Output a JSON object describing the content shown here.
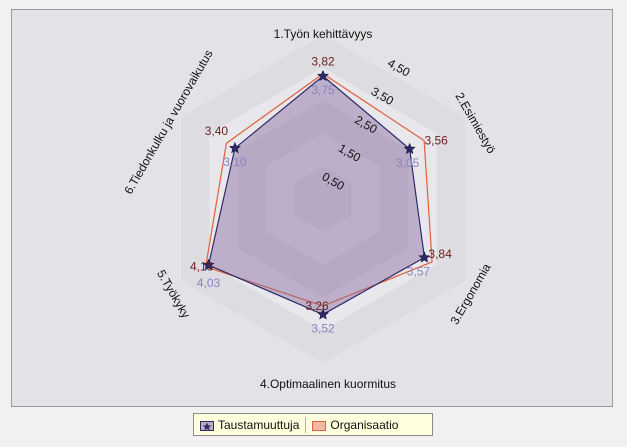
{
  "chart_data": {
    "type": "radar",
    "axes": [
      "1.Työn kehittävyys",
      "2.Esimiestyö",
      "3.Ergonomia",
      "4.Optimaalinen kuormitus",
      "5.Työkyky",
      "6.Tiedonkulku ja vuorovaikutus"
    ],
    "rlim": [
      0,
      5
    ],
    "tick_values": [
      0.5,
      1.5,
      2.5,
      3.5,
      4.5
    ],
    "tick_labels": [
      "0,50",
      "1,50",
      "2,50",
      "3,50",
      "4,50"
    ],
    "series": [
      {
        "name": "Taustamuuttuja",
        "values": [
          3.75,
          3.05,
          3.57,
          3.52,
          4.03,
          3.1
        ],
        "value_labels": [
          "3,75",
          "3,05",
          "3,57",
          "3,52",
          "4,03",
          "3,10"
        ],
        "color": "#2e2a6a",
        "label_color": "#8a84c0",
        "fill": "#8a6aa0"
      },
      {
        "name": "Organisaatio",
        "values": [
          3.82,
          3.56,
          3.84,
          3.26,
          4.13,
          3.4
        ],
        "value_labels": [
          "3,82",
          "3,56",
          "3,84",
          "3,26",
          "4,13",
          "3,40"
        ],
        "color": "#e0603a",
        "label_color": "#6a2420"
      }
    ],
    "grid": true,
    "legend_position": "bottom"
  }
}
